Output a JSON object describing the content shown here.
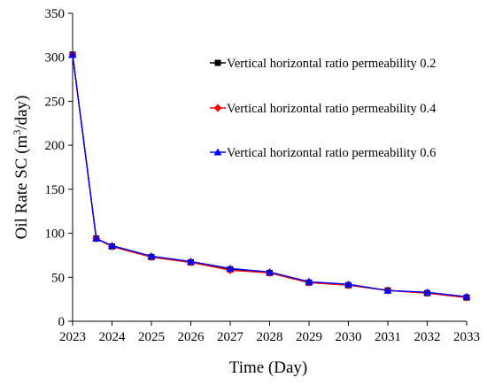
{
  "chart_data": {
    "type": "line",
    "title": "",
    "xlabel": "Time (Day)",
    "ylabel_main": "Oil Rate SC (m",
    "ylabel_sup": "3",
    "ylabel_tail": "/day)",
    "x_ticks": [
      "2023",
      "2024",
      "2025",
      "2026",
      "2027",
      "2028",
      "2029",
      "2030",
      "2031",
      "2032",
      "2033"
    ],
    "y_ticks": [
      "0",
      "50",
      "100",
      "150",
      "200",
      "250",
      "300",
      "350"
    ],
    "ylim": [
      0,
      350
    ],
    "xlim": [
      2023,
      2033
    ],
    "grid": false,
    "legend_position": "top-right",
    "x": [
      2023.0,
      2023.6,
      2024.0,
      2025.0,
      2026.0,
      2027.0,
      2028.0,
      2029.0,
      2030.0,
      2031.0,
      2032.0,
      2033.0
    ],
    "series": [
      {
        "name": "Vertical horizontal ratio permeability 0.2",
        "color": "#000000",
        "marker": "square",
        "values": [
          303,
          94,
          85,
          73,
          67,
          59,
          55,
          44,
          41,
          35,
          32,
          27
        ]
      },
      {
        "name": "Vertical horizontal ratio permeability 0.4",
        "color": "#ff0000",
        "marker": "diamond",
        "values": [
          303,
          94,
          85,
          73,
          67,
          58,
          55,
          44,
          41,
          35,
          32,
          27
        ]
      },
      {
        "name": "Vertical horizontal ratio permeability 0.6",
        "color": "#0000ff",
        "marker": "triangle",
        "values": [
          303,
          94,
          86,
          74,
          68,
          60,
          56,
          45,
          42,
          35,
          33,
          28
        ]
      }
    ]
  }
}
